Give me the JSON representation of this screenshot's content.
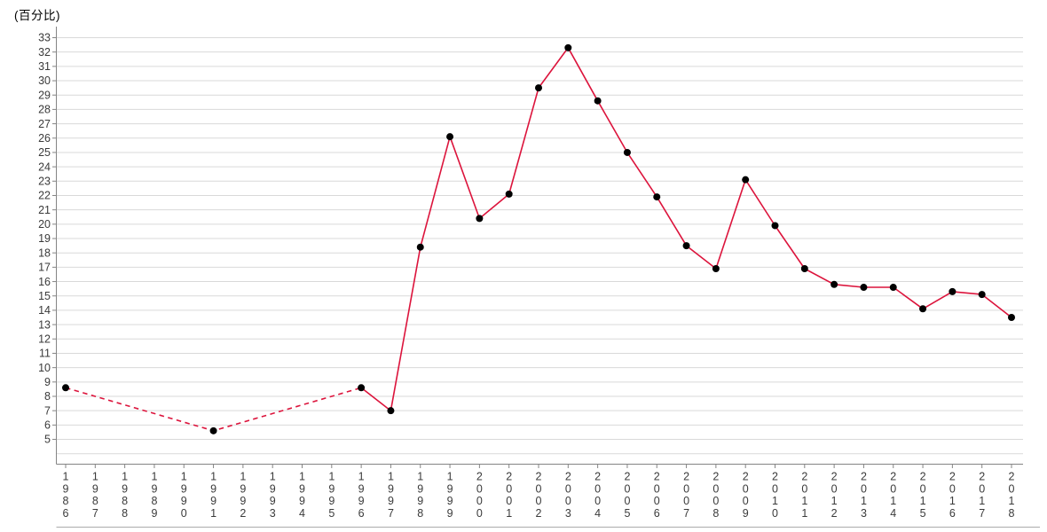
{
  "chart_data": {
    "type": "line",
    "title": "(百分比)",
    "xlabel": "",
    "ylabel": "百分比",
    "x_categories": [
      "1986",
      "1987",
      "1988",
      "1989",
      "1990",
      "1991",
      "1992",
      "1993",
      "1994",
      "1995",
      "1996",
      "1997",
      "1998",
      "1999",
      "2000",
      "2001",
      "2002",
      "2003",
      "2004",
      "2005",
      "2006",
      "2007",
      "2008",
      "2009",
      "2010",
      "2011",
      "2012",
      "2013",
      "2014",
      "2015",
      "2016",
      "2017",
      "2018"
    ],
    "y_ticks": {
      "min": 5,
      "max": 33,
      "step": 1
    },
    "ylim": [
      4,
      33
    ],
    "grid": true,
    "legend": "none",
    "series": [
      {
        "name": "百分比",
        "color": "#dc143c",
        "marker_color": "#000000",
        "dashed_from": "1986",
        "dashed_to": "1996",
        "points": [
          {
            "x": "1986",
            "y": 8.6
          },
          {
            "x": "1991",
            "y": 5.6
          },
          {
            "x": "1996",
            "y": 8.6
          },
          {
            "x": "1997",
            "y": 7.0
          },
          {
            "x": "1998",
            "y": 18.4
          },
          {
            "x": "1999",
            "y": 26.1
          },
          {
            "x": "2000",
            "y": 20.4
          },
          {
            "x": "2001",
            "y": 22.1
          },
          {
            "x": "2002",
            "y": 29.5
          },
          {
            "x": "2003",
            "y": 32.3
          },
          {
            "x": "2004",
            "y": 28.6
          },
          {
            "x": "2005",
            "y": 25.0
          },
          {
            "x": "2006",
            "y": 21.9
          },
          {
            "x": "2007",
            "y": 18.5
          },
          {
            "x": "2008",
            "y": 16.9
          },
          {
            "x": "2009",
            "y": 23.1
          },
          {
            "x": "2010",
            "y": 19.9
          },
          {
            "x": "2011",
            "y": 16.9
          },
          {
            "x": "2012",
            "y": 15.8
          },
          {
            "x": "2013",
            "y": 15.6
          },
          {
            "x": "2014",
            "y": 15.6
          },
          {
            "x": "2015",
            "y": 14.1
          },
          {
            "x": "2016",
            "y": 15.3
          },
          {
            "x": "2017",
            "y": 15.1
          },
          {
            "x": "2018",
            "y": 13.5
          }
        ]
      }
    ]
  },
  "colors": {
    "line": "#dc143c",
    "marker": "#000000",
    "grid": "#d9d9d9",
    "axis": "#848484",
    "tick": "#848484",
    "label": "#3a3a3a",
    "frame": "#ababab"
  }
}
